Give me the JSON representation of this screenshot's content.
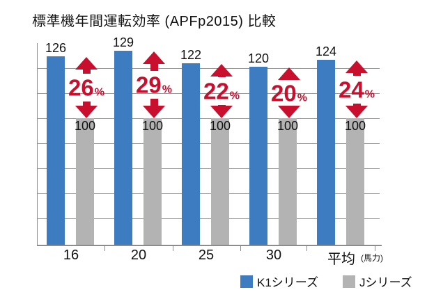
{
  "title": "標準機年間運転効率 (APFp2015) 比較",
  "chart_data": {
    "type": "bar",
    "categories": [
      "16",
      "20",
      "25",
      "30",
      "平均"
    ],
    "x_unit_label": "(馬力)",
    "series": [
      {
        "name": "K1シリーズ",
        "color": "#3d7cc0",
        "values": [
          126,
          129,
          122,
          120,
          124
        ]
      },
      {
        "name": "Jシリーズ",
        "color": "#b3b3b3",
        "values": [
          100,
          100,
          100,
          100,
          100
        ]
      }
    ],
    "improvement_percents": [
      "26",
      "29",
      "22",
      "20",
      "24"
    ],
    "percent_suffix": "%",
    "annotation_color": "#c8102e",
    "grid": true,
    "grid_color": "#999999",
    "axis_color": "#8c8c8c",
    "text_color": "#111111",
    "legend_position": "bottom-right",
    "baseline_value_hidden": true
  },
  "legend": {
    "items": [
      {
        "label": "K1シリーズ",
        "color": "#3d7cc0"
      },
      {
        "label": "Jシリーズ",
        "color": "#b3b3b3"
      }
    ]
  }
}
